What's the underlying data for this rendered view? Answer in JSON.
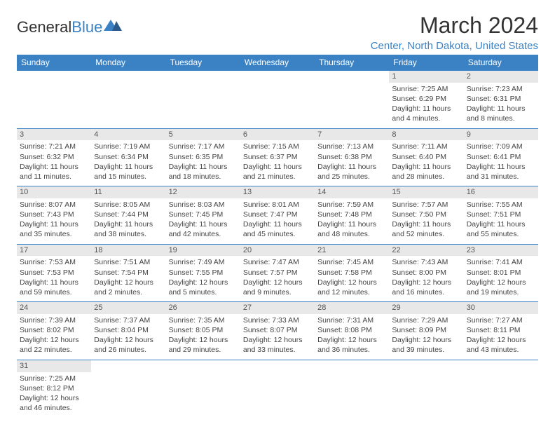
{
  "logo": {
    "text1": "General",
    "text2": "Blue"
  },
  "title": "March 2024",
  "location": "Center, North Dakota, United States",
  "colors": {
    "accent": "#3b82c4",
    "header_bg": "#3b82c4",
    "header_text": "#ffffff",
    "daynum_bg": "#e8e8e8",
    "text": "#333333",
    "border": "#3b82c4",
    "background": "#ffffff"
  },
  "days_of_week": [
    "Sunday",
    "Monday",
    "Tuesday",
    "Wednesday",
    "Thursday",
    "Friday",
    "Saturday"
  ],
  "weeks": [
    [
      null,
      null,
      null,
      null,
      null,
      {
        "n": "1",
        "sr": "Sunrise: 7:25 AM",
        "ss": "Sunset: 6:29 PM",
        "dl1": "Daylight: 11 hours",
        "dl2": "and 4 minutes."
      },
      {
        "n": "2",
        "sr": "Sunrise: 7:23 AM",
        "ss": "Sunset: 6:31 PM",
        "dl1": "Daylight: 11 hours",
        "dl2": "and 8 minutes."
      }
    ],
    [
      {
        "n": "3",
        "sr": "Sunrise: 7:21 AM",
        "ss": "Sunset: 6:32 PM",
        "dl1": "Daylight: 11 hours",
        "dl2": "and 11 minutes."
      },
      {
        "n": "4",
        "sr": "Sunrise: 7:19 AM",
        "ss": "Sunset: 6:34 PM",
        "dl1": "Daylight: 11 hours",
        "dl2": "and 15 minutes."
      },
      {
        "n": "5",
        "sr": "Sunrise: 7:17 AM",
        "ss": "Sunset: 6:35 PM",
        "dl1": "Daylight: 11 hours",
        "dl2": "and 18 minutes."
      },
      {
        "n": "6",
        "sr": "Sunrise: 7:15 AM",
        "ss": "Sunset: 6:37 PM",
        "dl1": "Daylight: 11 hours",
        "dl2": "and 21 minutes."
      },
      {
        "n": "7",
        "sr": "Sunrise: 7:13 AM",
        "ss": "Sunset: 6:38 PM",
        "dl1": "Daylight: 11 hours",
        "dl2": "and 25 minutes."
      },
      {
        "n": "8",
        "sr": "Sunrise: 7:11 AM",
        "ss": "Sunset: 6:40 PM",
        "dl1": "Daylight: 11 hours",
        "dl2": "and 28 minutes."
      },
      {
        "n": "9",
        "sr": "Sunrise: 7:09 AM",
        "ss": "Sunset: 6:41 PM",
        "dl1": "Daylight: 11 hours",
        "dl2": "and 31 minutes."
      }
    ],
    [
      {
        "n": "10",
        "sr": "Sunrise: 8:07 AM",
        "ss": "Sunset: 7:43 PM",
        "dl1": "Daylight: 11 hours",
        "dl2": "and 35 minutes."
      },
      {
        "n": "11",
        "sr": "Sunrise: 8:05 AM",
        "ss": "Sunset: 7:44 PM",
        "dl1": "Daylight: 11 hours",
        "dl2": "and 38 minutes."
      },
      {
        "n": "12",
        "sr": "Sunrise: 8:03 AM",
        "ss": "Sunset: 7:45 PM",
        "dl1": "Daylight: 11 hours",
        "dl2": "and 42 minutes."
      },
      {
        "n": "13",
        "sr": "Sunrise: 8:01 AM",
        "ss": "Sunset: 7:47 PM",
        "dl1": "Daylight: 11 hours",
        "dl2": "and 45 minutes."
      },
      {
        "n": "14",
        "sr": "Sunrise: 7:59 AM",
        "ss": "Sunset: 7:48 PM",
        "dl1": "Daylight: 11 hours",
        "dl2": "and 48 minutes."
      },
      {
        "n": "15",
        "sr": "Sunrise: 7:57 AM",
        "ss": "Sunset: 7:50 PM",
        "dl1": "Daylight: 11 hours",
        "dl2": "and 52 minutes."
      },
      {
        "n": "16",
        "sr": "Sunrise: 7:55 AM",
        "ss": "Sunset: 7:51 PM",
        "dl1": "Daylight: 11 hours",
        "dl2": "and 55 minutes."
      }
    ],
    [
      {
        "n": "17",
        "sr": "Sunrise: 7:53 AM",
        "ss": "Sunset: 7:53 PM",
        "dl1": "Daylight: 11 hours",
        "dl2": "and 59 minutes."
      },
      {
        "n": "18",
        "sr": "Sunrise: 7:51 AM",
        "ss": "Sunset: 7:54 PM",
        "dl1": "Daylight: 12 hours",
        "dl2": "and 2 minutes."
      },
      {
        "n": "19",
        "sr": "Sunrise: 7:49 AM",
        "ss": "Sunset: 7:55 PM",
        "dl1": "Daylight: 12 hours",
        "dl2": "and 5 minutes."
      },
      {
        "n": "20",
        "sr": "Sunrise: 7:47 AM",
        "ss": "Sunset: 7:57 PM",
        "dl1": "Daylight: 12 hours",
        "dl2": "and 9 minutes."
      },
      {
        "n": "21",
        "sr": "Sunrise: 7:45 AM",
        "ss": "Sunset: 7:58 PM",
        "dl1": "Daylight: 12 hours",
        "dl2": "and 12 minutes."
      },
      {
        "n": "22",
        "sr": "Sunrise: 7:43 AM",
        "ss": "Sunset: 8:00 PM",
        "dl1": "Daylight: 12 hours",
        "dl2": "and 16 minutes."
      },
      {
        "n": "23",
        "sr": "Sunrise: 7:41 AM",
        "ss": "Sunset: 8:01 PM",
        "dl1": "Daylight: 12 hours",
        "dl2": "and 19 minutes."
      }
    ],
    [
      {
        "n": "24",
        "sr": "Sunrise: 7:39 AM",
        "ss": "Sunset: 8:02 PM",
        "dl1": "Daylight: 12 hours",
        "dl2": "and 22 minutes."
      },
      {
        "n": "25",
        "sr": "Sunrise: 7:37 AM",
        "ss": "Sunset: 8:04 PM",
        "dl1": "Daylight: 12 hours",
        "dl2": "and 26 minutes."
      },
      {
        "n": "26",
        "sr": "Sunrise: 7:35 AM",
        "ss": "Sunset: 8:05 PM",
        "dl1": "Daylight: 12 hours",
        "dl2": "and 29 minutes."
      },
      {
        "n": "27",
        "sr": "Sunrise: 7:33 AM",
        "ss": "Sunset: 8:07 PM",
        "dl1": "Daylight: 12 hours",
        "dl2": "and 33 minutes."
      },
      {
        "n": "28",
        "sr": "Sunrise: 7:31 AM",
        "ss": "Sunset: 8:08 PM",
        "dl1": "Daylight: 12 hours",
        "dl2": "and 36 minutes."
      },
      {
        "n": "29",
        "sr": "Sunrise: 7:29 AM",
        "ss": "Sunset: 8:09 PM",
        "dl1": "Daylight: 12 hours",
        "dl2": "and 39 minutes."
      },
      {
        "n": "30",
        "sr": "Sunrise: 7:27 AM",
        "ss": "Sunset: 8:11 PM",
        "dl1": "Daylight: 12 hours",
        "dl2": "and 43 minutes."
      }
    ],
    [
      {
        "n": "31",
        "sr": "Sunrise: 7:25 AM",
        "ss": "Sunset: 8:12 PM",
        "dl1": "Daylight: 12 hours",
        "dl2": "and 46 minutes."
      },
      null,
      null,
      null,
      null,
      null,
      null
    ]
  ]
}
